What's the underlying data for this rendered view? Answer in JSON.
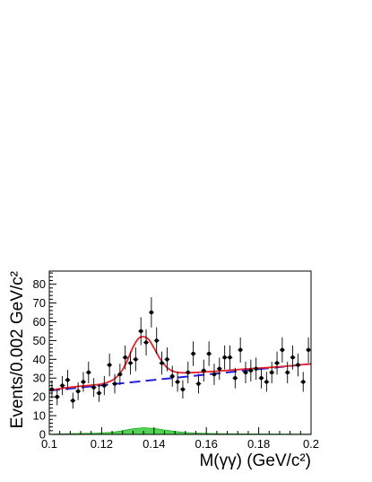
{
  "chart_data": {
    "type": "scatter",
    "xlabel": "M(γγ) (GeV/c²)",
    "ylabel": "Events/0.002 GeV/c²",
    "xlim": [
      0.1,
      0.2
    ],
    "ylim": [
      0,
      87
    ],
    "x_ticks": [
      "0.1",
      "0.12",
      "0.14",
      "0.16",
      "0.18",
      "0.2"
    ],
    "x_tick_values": [
      0.1,
      0.12,
      0.14,
      0.16,
      0.18,
      0.2
    ],
    "y_ticks": [
      "0",
      "10",
      "20",
      "30",
      "40",
      "50",
      "60",
      "70",
      "80"
    ],
    "y_tick_values": [
      0,
      10,
      20,
      30,
      40,
      50,
      60,
      70,
      80
    ],
    "grid": false,
    "series": [
      {
        "kind": "data-points-with-errors",
        "color": "#000000",
        "x": [
          0.101,
          0.103,
          0.105,
          0.107,
          0.109,
          0.111,
          0.113,
          0.115,
          0.117,
          0.119,
          0.121,
          0.123,
          0.125,
          0.127,
          0.129,
          0.131,
          0.133,
          0.135,
          0.137,
          0.139,
          0.141,
          0.143,
          0.145,
          0.147,
          0.149,
          0.151,
          0.153,
          0.155,
          0.157,
          0.159,
          0.161,
          0.163,
          0.165,
          0.167,
          0.169,
          0.171,
          0.173,
          0.175,
          0.177,
          0.179,
          0.181,
          0.183,
          0.185,
          0.187,
          0.189,
          0.191,
          0.193,
          0.195,
          0.197,
          0.199
        ],
        "y": [
          24,
          20,
          26,
          29,
          18,
          23,
          28,
          33,
          25,
          22,
          26,
          37,
          27,
          32,
          41,
          38,
          40,
          55,
          49,
          65,
          50,
          38,
          40,
          31,
          28,
          24,
          33,
          43,
          27,
          34,
          43,
          32,
          35,
          41,
          41,
          30,
          45,
          33,
          34,
          35,
          30,
          28,
          33,
          38,
          45,
          33,
          41,
          37,
          28,
          45
        ]
      },
      {
        "kind": "fit-total",
        "color": "#e8202a",
        "x": [
          0.1,
          0.104,
          0.108,
          0.112,
          0.116,
          0.12,
          0.124,
          0.126,
          0.128,
          0.13,
          0.132,
          0.134,
          0.136,
          0.138,
          0.14,
          0.142,
          0.144,
          0.146,
          0.148,
          0.15,
          0.152,
          0.154,
          0.156,
          0.16,
          0.17,
          0.18,
          0.19,
          0.2
        ],
        "y": [
          23.3,
          24.4,
          25.1,
          25.7,
          26.2,
          26.8,
          28.8,
          31.0,
          34.5,
          40.0,
          46.5,
          51.0,
          52.0,
          50.5,
          46.0,
          41.0,
          37.0,
          34.5,
          33.3,
          32.9,
          32.8,
          32.9,
          33.0,
          33.3,
          34.3,
          35.3,
          36.3,
          37.6
        ]
      },
      {
        "kind": "fit-background",
        "color": "#2020e0",
        "x": [
          0.1,
          0.2
        ],
        "y": [
          23.3,
          37.6
        ]
      },
      {
        "kind": "peaking-background",
        "color": "#33cc33",
        "x": [
          0.1,
          0.11,
          0.118,
          0.124,
          0.128,
          0.132,
          0.136,
          0.14,
          0.144,
          0.148,
          0.152,
          0.158,
          0.165,
          0.175,
          0.185,
          0.2
        ],
        "y": [
          0.2,
          0.5,
          0.7,
          1.1,
          2.0,
          3.0,
          3.6,
          3.2,
          2.4,
          1.6,
          1.0,
          0.6,
          0.4,
          0.3,
          0.25,
          0.2
        ]
      }
    ]
  }
}
